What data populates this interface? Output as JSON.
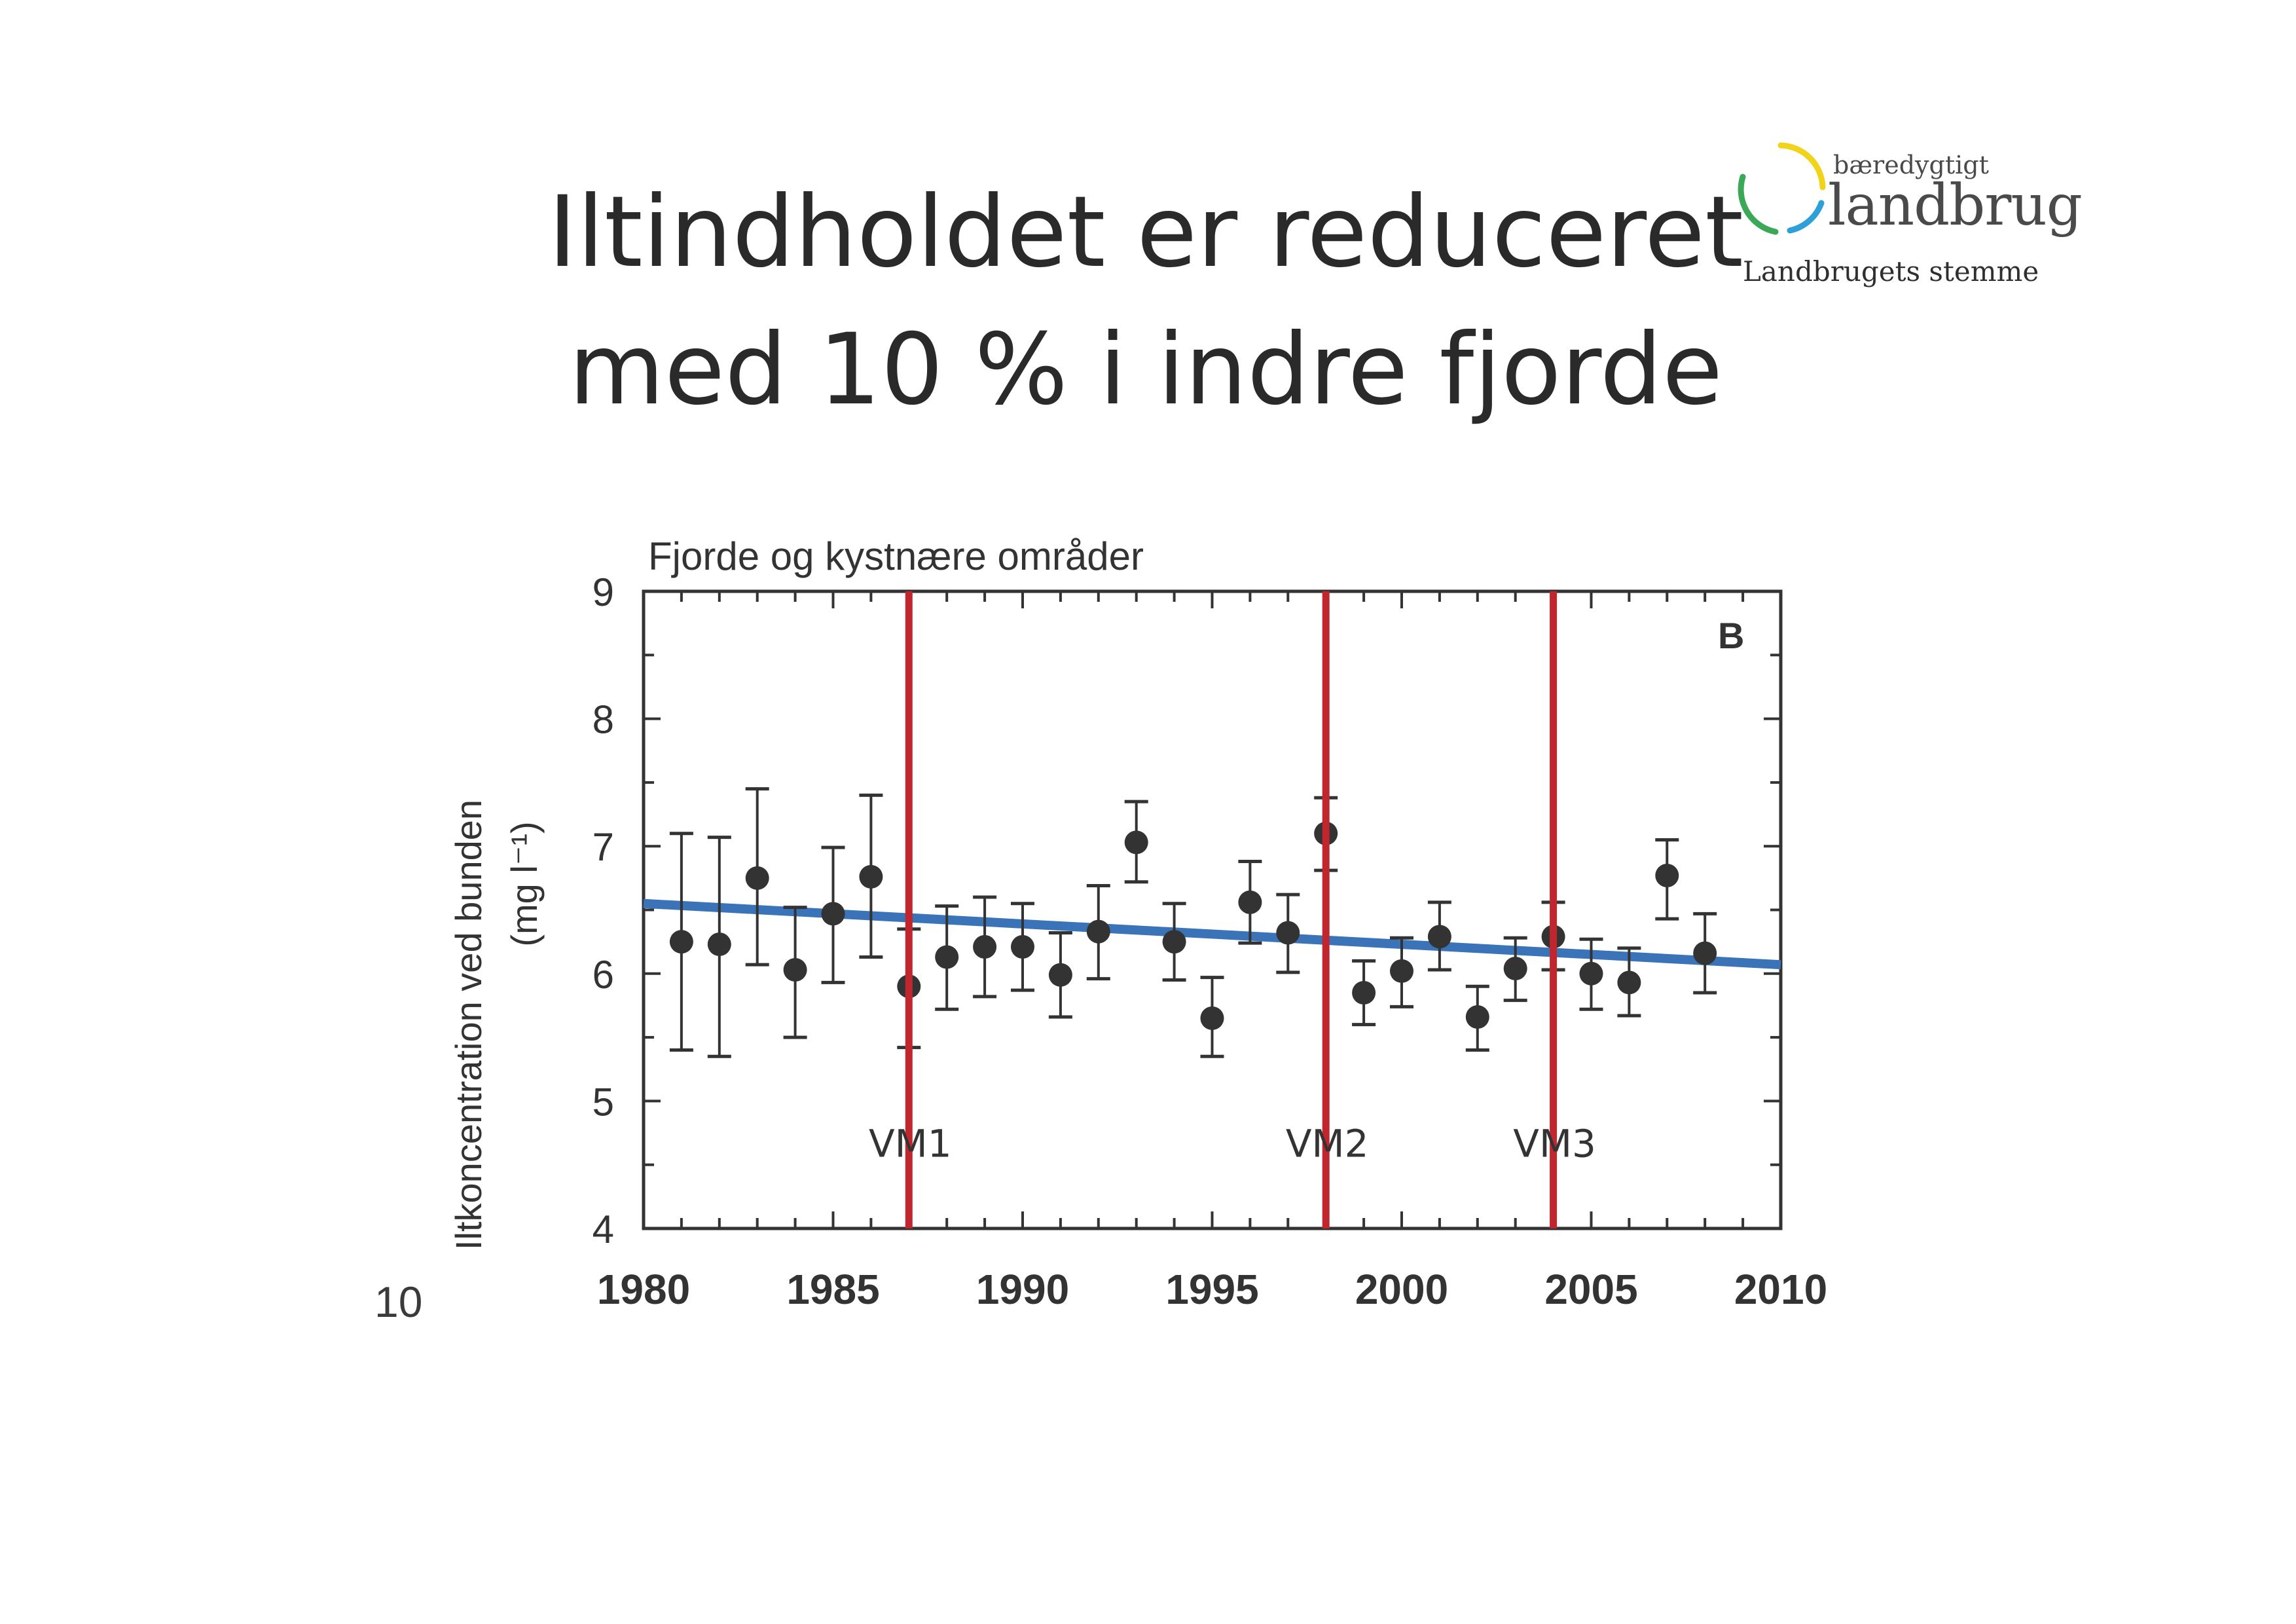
{
  "slide": {
    "title_line1": "Iltindholdet er reduceret",
    "title_line2": "med 10 % i indre fjorde",
    "page_number": "10"
  },
  "logo": {
    "small_text": "bæredygtigt",
    "big_text": "landbrug",
    "tagline": "Landbrugets stemme",
    "colors": {
      "yellow": "#f2d31b",
      "green": "#3aa857",
      "blue": "#2f9fd8"
    }
  },
  "chart_data": {
    "type": "scatter",
    "title": "Fjorde og kystnære områder",
    "panel_label": "B",
    "ylabel": "Iltkoncentration ved bunden",
    "ylabel_units": "(mg l⁻¹)",
    "xlim": [
      1980,
      2010
    ],
    "ylim": [
      4,
      9
    ],
    "x_ticks": [
      "1980",
      "1985",
      "1990",
      "1995",
      "2000",
      "2005",
      "2010"
    ],
    "y_ticks": [
      "4",
      "5",
      "6",
      "7",
      "8",
      "9"
    ],
    "grid": false,
    "series": [
      {
        "points": [
          {
            "x": 1981,
            "y": 6.25,
            "lo": 5.4,
            "hi": 7.1
          },
          {
            "x": 1982,
            "y": 6.23,
            "lo": 5.35,
            "hi": 7.07
          },
          {
            "x": 1983,
            "y": 6.75,
            "lo": 6.07,
            "hi": 7.45
          },
          {
            "x": 1984,
            "y": 6.03,
            "lo": 5.5,
            "hi": 6.52
          },
          {
            "x": 1985,
            "y": 6.47,
            "lo": 5.93,
            "hi": 6.99
          },
          {
            "x": 1986,
            "y": 6.76,
            "lo": 6.13,
            "hi": 7.4
          },
          {
            "x": 1987,
            "y": 5.9,
            "lo": 5.42,
            "hi": 6.35
          },
          {
            "x": 1988,
            "y": 6.13,
            "lo": 5.72,
            "hi": 6.53
          },
          {
            "x": 1989,
            "y": 6.21,
            "lo": 5.82,
            "hi": 6.6
          },
          {
            "x": 1990,
            "y": 6.21,
            "lo": 5.87,
            "hi": 6.55
          },
          {
            "x": 1991,
            "y": 5.99,
            "lo": 5.66,
            "hi": 6.32
          },
          {
            "x": 1992,
            "y": 6.33,
            "lo": 5.96,
            "hi": 6.69
          },
          {
            "x": 1993,
            "y": 7.03,
            "lo": 6.72,
            "hi": 7.35
          },
          {
            "x": 1994,
            "y": 6.25,
            "lo": 5.95,
            "hi": 6.55
          },
          {
            "x": 1995,
            "y": 5.65,
            "lo": 5.35,
            "hi": 5.97
          },
          {
            "x": 1996,
            "y": 6.56,
            "lo": 6.24,
            "hi": 6.88
          },
          {
            "x": 1997,
            "y": 6.32,
            "lo": 6.01,
            "hi": 6.62
          },
          {
            "x": 1998,
            "y": 7.1,
            "lo": 6.81,
            "hi": 7.38
          },
          {
            "x": 1999,
            "y": 5.85,
            "lo": 5.6,
            "hi": 6.1
          },
          {
            "x": 2000,
            "y": 6.02,
            "lo": 5.74,
            "hi": 6.28
          },
          {
            "x": 2001,
            "y": 6.29,
            "lo": 6.03,
            "hi": 6.56
          },
          {
            "x": 2002,
            "y": 5.66,
            "lo": 5.4,
            "hi": 5.9
          },
          {
            "x": 2003,
            "y": 6.04,
            "lo": 5.79,
            "hi": 6.28
          },
          {
            "x": 2004,
            "y": 6.29,
            "lo": 6.03,
            "hi": 6.56
          },
          {
            "x": 2005,
            "y": 6.0,
            "lo": 5.72,
            "hi": 6.27
          },
          {
            "x": 2006,
            "y": 5.93,
            "lo": 5.67,
            "hi": 6.2
          },
          {
            "x": 2007,
            "y": 6.77,
            "lo": 6.43,
            "hi": 7.05
          },
          {
            "x": 2008,
            "y": 6.16,
            "lo": 5.85,
            "hi": 6.47
          }
        ]
      }
    ],
    "trend_line": {
      "x": [
        1980,
        2010
      ],
      "y": [
        6.55,
        6.07
      ],
      "color": "#3a73b8"
    },
    "vertical_markers": [
      {
        "x": 1987,
        "label": "VM1"
      },
      {
        "x": 1998,
        "label": "VM2"
      },
      {
        "x": 2004,
        "label": "VM3"
      }
    ],
    "colors": {
      "marker": "#333333",
      "vertical_line": "#c0262d",
      "axis": "#333333"
    }
  }
}
